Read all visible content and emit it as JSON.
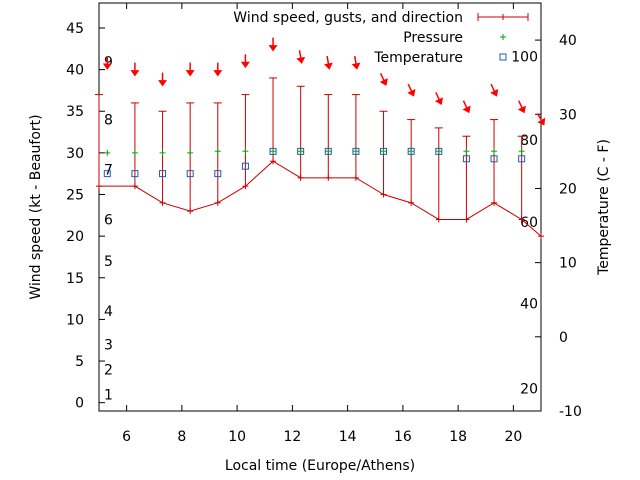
{
  "chart_data": {
    "type": "line",
    "title": "",
    "xlabel": "Local time (Europe/Athens)",
    "ylabel": "Wind speed (kt - Beaufort)",
    "y2label": "Temperature (C - F)",
    "xlim": [
      5.0,
      21.0
    ],
    "ylim": [
      -1.0,
      48.0
    ],
    "y2lim": [
      -10.0,
      45.0
    ],
    "x_ticks": [
      6,
      8,
      10,
      12,
      14,
      16,
      18,
      20
    ],
    "y_ticks": [
      0,
      5,
      10,
      15,
      20,
      25,
      30,
      35,
      40,
      45
    ],
    "y2_ticks": [
      -10,
      0,
      10,
      20,
      30,
      40
    ],
    "beaufort_labels": [
      {
        "label": "1",
        "y": 1
      },
      {
        "label": "2",
        "y": 4
      },
      {
        "label": "3",
        "y": 7
      },
      {
        "label": "4",
        "y": 11
      },
      {
        "label": "5",
        "y": 17
      },
      {
        "label": "6",
        "y": 22
      },
      {
        "label": "7",
        "y": 28
      },
      {
        "label": "8",
        "y": 34
      },
      {
        "label": "9",
        "y": 41
      }
    ],
    "fahrenheit_labels": [
      {
        "label": "20",
        "y2": -7
      },
      {
        "label": "40",
        "y2": 4.5
      },
      {
        "label": "60",
        "y2": 15.5
      },
      {
        "label": "80",
        "y2": 26.5
      },
      {
        "label": "100",
        "y2": 37.8
      }
    ],
    "legend": {
      "position": "top-right",
      "entries": [
        "Wind speed, gusts, and direction",
        "Pressure",
        "Temperature"
      ]
    },
    "colors": {
      "wind": "#cc0000",
      "pressure": "#00aa00",
      "temperature": "#1a5fb4",
      "arrow": "#ff0000"
    },
    "series": [
      {
        "name": "Wind speed, gusts, and direction",
        "x": [
          5.0,
          6.3,
          7.3,
          8.3,
          9.3,
          10.3,
          11.3,
          12.3,
          13.3,
          14.3,
          15.3,
          16.3,
          17.3,
          18.3,
          19.3,
          20.3,
          21.0
        ],
        "values": [
          26,
          26,
          24,
          23,
          24,
          26,
          29,
          27,
          27,
          27,
          25,
          24,
          22,
          22,
          24,
          22,
          20
        ],
        "gusts": [
          37,
          36,
          35,
          36,
          36,
          37,
          39,
          38,
          37,
          37,
          35,
          34,
          33,
          32,
          34,
          32,
          null
        ]
      },
      {
        "name": "Pressure",
        "x": [
          5.3,
          6.3,
          7.3,
          8.3,
          9.3,
          10.3,
          11.3,
          12.3,
          13.3,
          14.3,
          15.3,
          16.3,
          17.3,
          18.3,
          19.3,
          20.3
        ],
        "values": [
          30.0,
          30.0,
          30.0,
          30.0,
          30.2,
          30.2,
          30.2,
          30.2,
          30.2,
          30.2,
          30.2,
          30.2,
          30.2,
          30.2,
          30.2,
          30.2
        ]
      },
      {
        "name": "Temperature",
        "x": [
          5.3,
          6.3,
          7.3,
          8.3,
          9.3,
          10.3,
          11.3,
          12.3,
          13.3,
          14.3,
          15.3,
          16.3,
          17.3,
          18.3,
          19.3,
          20.3
        ],
        "values": [
          22,
          22,
          22,
          22,
          22,
          23,
          25,
          25,
          25,
          25,
          25,
          25,
          25,
          24,
          24,
          24
        ]
      }
    ],
    "wind_direction_arrows": {
      "x": [
        5.3,
        6.3,
        7.3,
        8.3,
        9.3,
        10.3,
        11.3,
        12.3,
        13.3,
        14.3,
        15.3,
        16.3,
        17.3,
        18.3,
        19.3,
        20.3,
        21.0
      ],
      "y": [
        40.8,
        40.0,
        38.8,
        40.0,
        40.0,
        41.0,
        43.0,
        41.5,
        40.8,
        40.8,
        38.8,
        37.5,
        36.5,
        35.5,
        37.5,
        35.5,
        34.0
      ],
      "angles_deg": [
        0,
        0,
        0,
        0,
        0,
        0,
        0,
        10,
        10,
        10,
        25,
        25,
        25,
        25,
        25,
        25,
        30
      ]
    }
  }
}
